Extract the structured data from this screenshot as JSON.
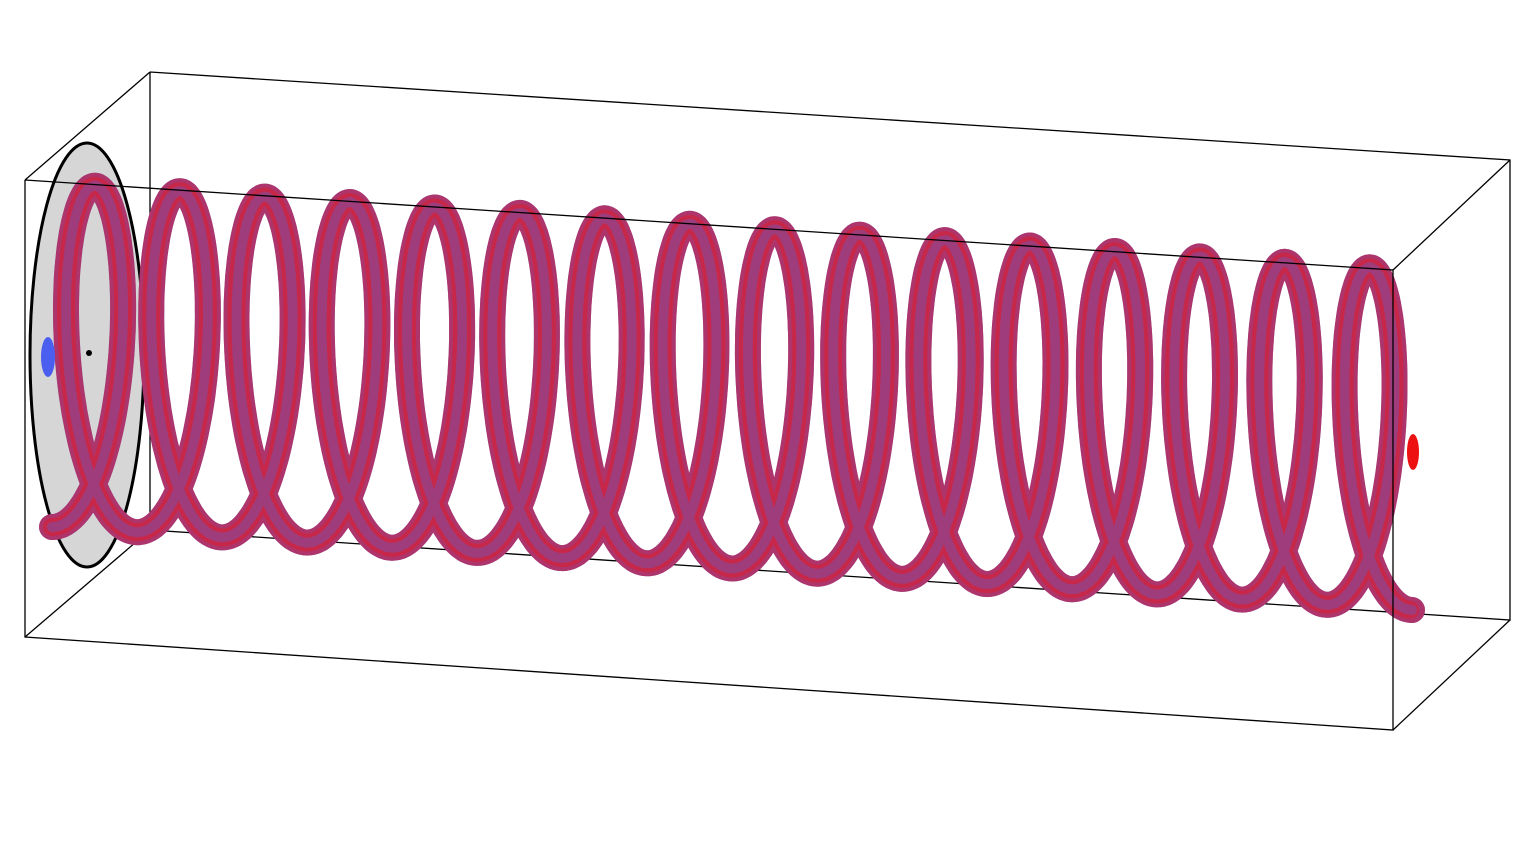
{
  "figure": {
    "type": "3d-helix-render",
    "background_color": "#ffffff",
    "box_edge_color": "#000000",
    "disc_fill_color": "#d6d6d6",
    "disc_edge_color": "#000000",
    "helix_colors": [
      "#dd1c2c",
      "#5566e0"
    ],
    "start_marker_color": "#4a5ef0",
    "end_marker_color": "#ee1111",
    "turns": 16
  }
}
